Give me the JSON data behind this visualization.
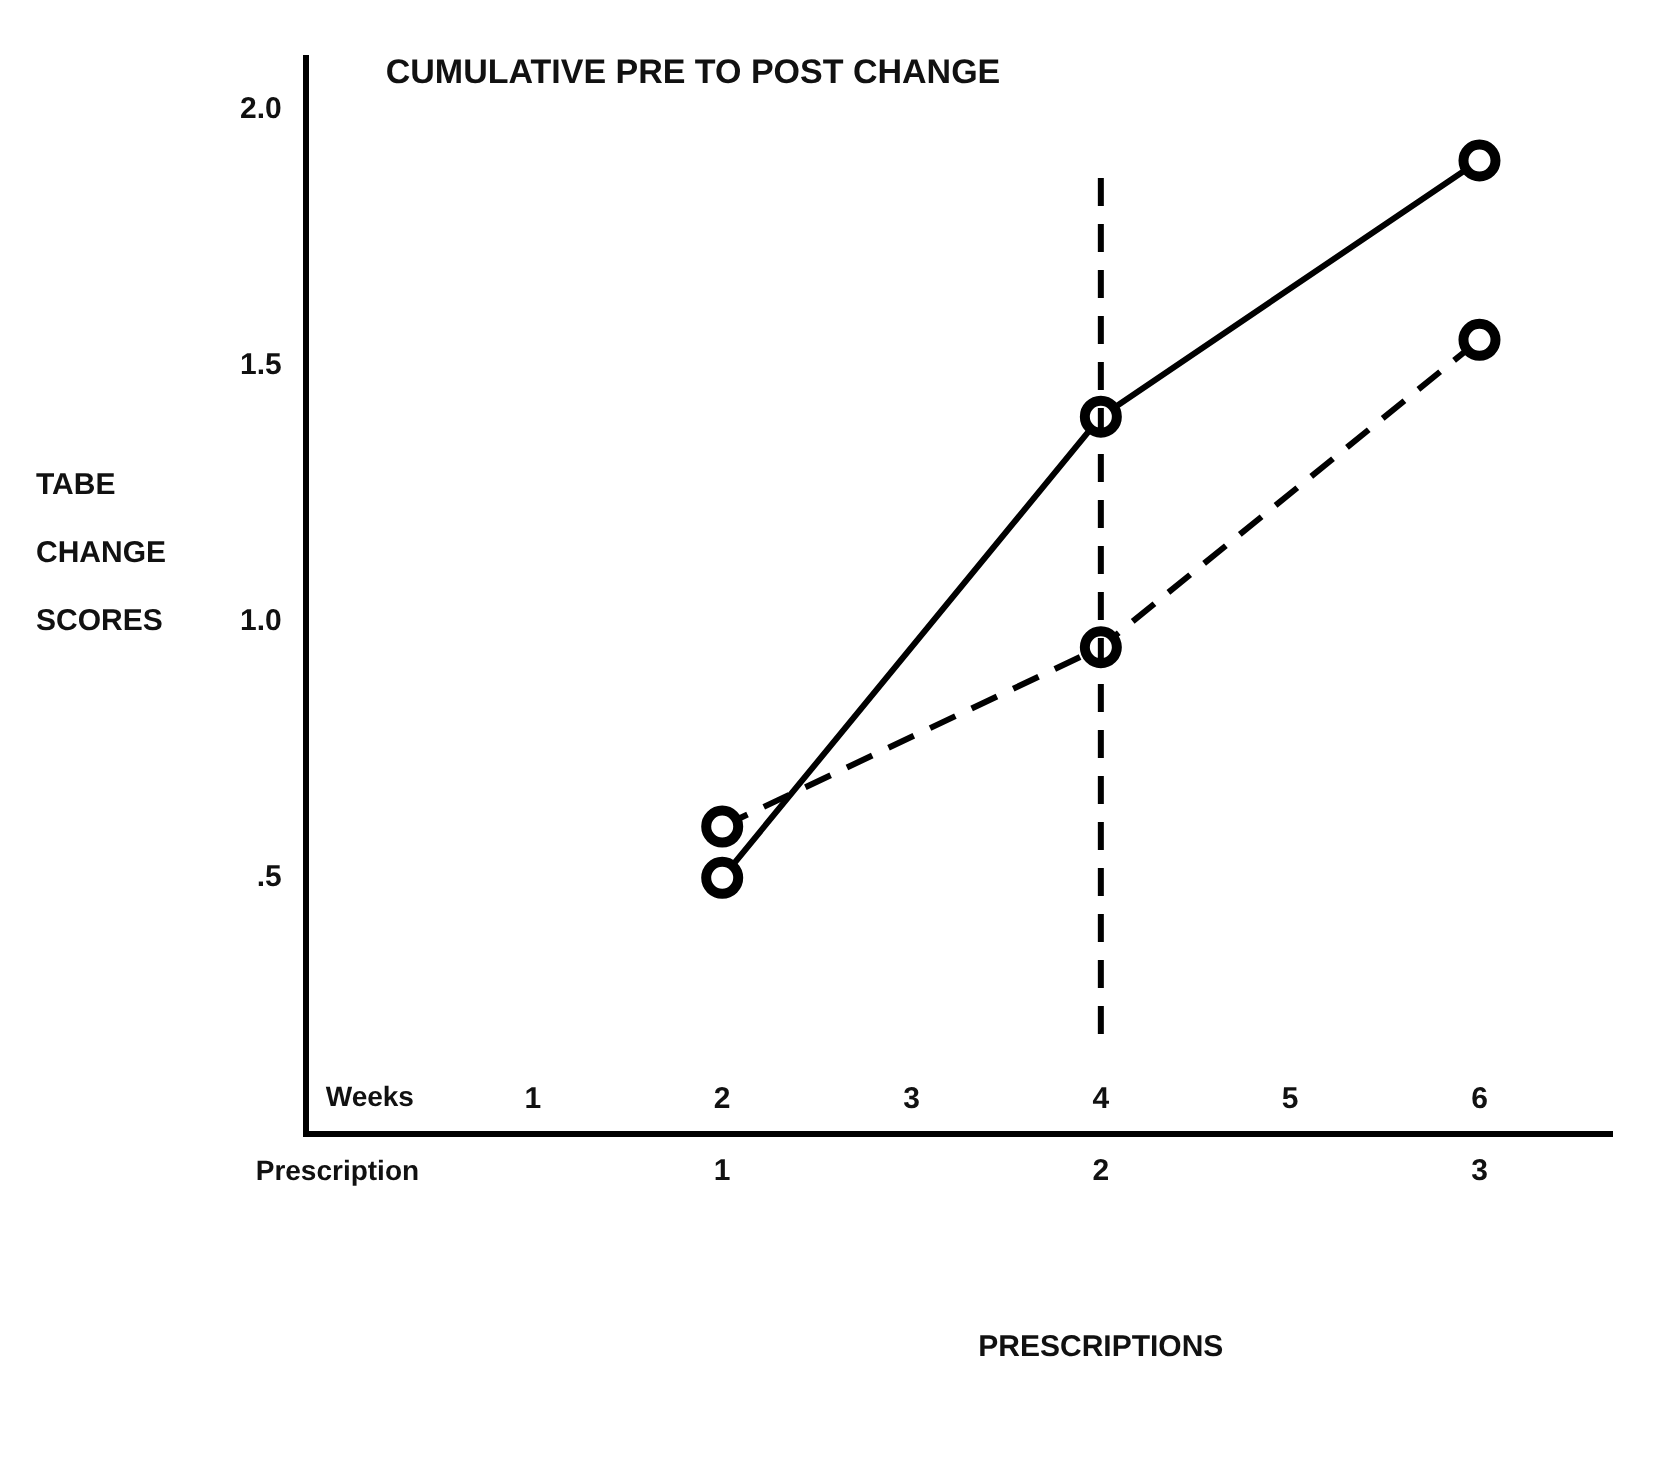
{
  "chart_data": {
    "type": "line",
    "title": "CUMULATIVE PRE TO POST CHANGE",
    "ylabel": "TABE CHANGE SCORES",
    "xlabel": "Weeks",
    "x2label": "Prescription",
    "annotations": [
      "PRESCRIPTIONS"
    ],
    "x": [
      2,
      4,
      6
    ],
    "series": [
      {
        "color": "#000000",
        "line_style": "solid",
        "values": [
          0.5,
          1.4,
          1.9
        ]
      },
      {
        "color": "#000000",
        "line_style": "dashed",
        "values": [
          0.6,
          0.95,
          1.55
        ]
      }
    ],
    "xlim": [
      -0.2,
      6.7
    ],
    "xticks": [
      1,
      2,
      3,
      4,
      5,
      6
    ],
    "x2lim": [
      -0.1,
      3.35
    ],
    "x2ticks": [
      1,
      2,
      3
    ],
    "ylim": [
      0,
      2.1
    ],
    "yticks": [
      {
        "value": 0.5,
        "label": ".5"
      },
      {
        "value": 1,
        "label": "1.0"
      },
      {
        "value": 1.5,
        "label": "1.5"
      },
      {
        "value": 2,
        "label": "2.0"
      }
    ],
    "ref_lines": [
      {
        "axis": "x",
        "value": 4,
        "color": "#000000",
        "line_style": "dashed"
      }
    ],
    "marker": "circle",
    "grid": false,
    "legend": false
  }
}
